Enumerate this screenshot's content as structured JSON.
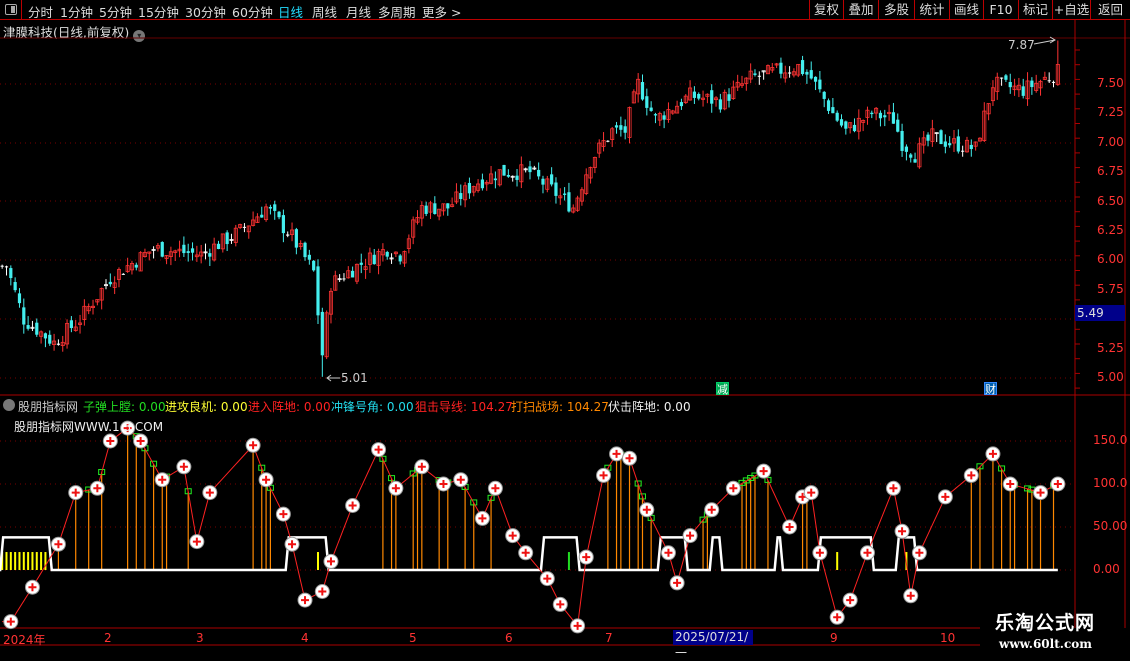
{
  "toolbar": {
    "periods": [
      "分时",
      "1分钟",
      "5分钟",
      "15分钟",
      "30分钟",
      "60分钟",
      "日线",
      "周线",
      "月线",
      "多周期",
      "更多 >"
    ],
    "active_period": "日线",
    "buttons": [
      "复权",
      "叠加",
      "多股",
      "统计",
      "画线",
      "F10",
      "标记",
      "+自选",
      "返回"
    ]
  },
  "stock": {
    "title": "津膜科技(日线,前复权)",
    "current_price": "5.49",
    "high_label": "7.87",
    "low_label": "5.01",
    "marker_reduce": "减",
    "marker_finance": "财"
  },
  "price_axis": [
    "7.50",
    "7.25",
    "7.00",
    "6.75",
    "6.50",
    "6.25",
    "6.00",
    "5.75",
    "5.25",
    "5.00"
  ],
  "indicator": {
    "name": "股朋指标网",
    "watermark": "股朋指标网WWW.1  3.COM",
    "items": [
      {
        "label": "子弹上膛: 0.00",
        "color": "#22dd22"
      },
      {
        "label": "进攻良机: 0.00",
        "color": "#ffff33"
      },
      {
        "label": "进入阵地: 0.00",
        "color": "#ff2222"
      },
      {
        "label": "冲锋号角: 0.00",
        "color": "#22ddee"
      },
      {
        "label": "狙击导线: 104.27",
        "color": "#ff2222"
      },
      {
        "label": "打扫战场: 104.27",
        "color": "#ff8800"
      },
      {
        "label": "伏击阵地: 0.00",
        "color": "#eeeeee"
      }
    ],
    "axis": [
      "150.0",
      "100.0",
      "50.00",
      "0.00"
    ]
  },
  "time_axis": {
    "months": [
      "2024年",
      "2",
      "3",
      "4",
      "5",
      "6",
      "7",
      "9",
      "10"
    ],
    "cursor_date": "2025/07/21/一"
  },
  "logo": {
    "line1": "乐淘公式网",
    "line2": "www.60lt.com"
  },
  "colors": {
    "up": "#ff3333",
    "down": "#44eeee",
    "grid": "#aa0000",
    "step": "#ffffff",
    "signal": "#ff8800",
    "bar": "#ffff00"
  },
  "chart_data": {
    "type": "candlestick",
    "bars": 245,
    "price_range": [
      4.9,
      7.95
    ],
    "close_keypoints": [
      [
        1,
        5.95
      ],
      [
        5,
        5.5
      ],
      [
        12,
        5.3
      ],
      [
        18,
        5.5
      ],
      [
        25,
        5.85
      ],
      [
        35,
        6.1
      ],
      [
        46,
        6.05
      ],
      [
        55,
        6.25
      ],
      [
        61,
        6.45
      ],
      [
        67,
        6.2
      ],
      [
        72,
        5.9
      ],
      [
        74,
        5.2
      ],
      [
        76,
        5.8
      ],
      [
        82,
        5.95
      ],
      [
        89,
        6.1
      ],
      [
        92,
        6.05
      ],
      [
        97,
        6.45
      ],
      [
        103,
        6.45
      ],
      [
        109,
        6.65
      ],
      [
        115,
        6.75
      ],
      [
        122,
        6.75
      ],
      [
        132,
        6.45
      ],
      [
        136,
        6.85
      ],
      [
        141,
        7.1
      ],
      [
        144,
        7.1
      ],
      [
        147,
        7.5
      ],
      [
        151,
        7.2
      ],
      [
        159,
        7.4
      ],
      [
        166,
        7.35
      ],
      [
        173,
        7.55
      ],
      [
        178,
        7.6
      ],
      [
        184,
        7.65
      ],
      [
        187,
        7.55
      ],
      [
        192,
        7.25
      ],
      [
        195,
        7.1
      ],
      [
        201,
        7.25
      ],
      [
        206,
        7.2
      ],
      [
        208,
        7.0
      ],
      [
        211,
        6.9
      ],
      [
        215,
        7.05
      ],
      [
        219,
        7.0
      ],
      [
        225,
        6.95
      ],
      [
        229,
        7.5
      ],
      [
        236,
        7.45
      ],
      [
        244,
        7.6
      ]
    ],
    "indicator_range": [
      -75,
      190
    ],
    "curve_keypoints": [
      [
        2,
        -60
      ],
      [
        7,
        -20
      ],
      [
        13,
        30
      ],
      [
        17,
        90
      ],
      [
        22,
        95
      ],
      [
        25,
        150
      ],
      [
        29,
        165
      ],
      [
        32,
        150
      ],
      [
        37,
        105
      ],
      [
        42,
        120
      ],
      [
        45,
        33
      ],
      [
        48,
        90
      ],
      [
        58,
        145
      ],
      [
        61,
        105
      ],
      [
        65,
        65
      ],
      [
        67,
        30
      ],
      [
        70,
        -35
      ],
      [
        74,
        -25
      ],
      [
        76,
        10
      ],
      [
        81,
        75
      ],
      [
        87,
        140
      ],
      [
        91,
        95
      ],
      [
        97,
        120
      ],
      [
        102,
        100
      ],
      [
        106,
        105
      ],
      [
        111,
        60
      ],
      [
        114,
        95
      ],
      [
        118,
        40
      ],
      [
        121,
        20
      ],
      [
        126,
        -10
      ],
      [
        129,
        -40
      ],
      [
        133,
        -65
      ],
      [
        135,
        15
      ],
      [
        139,
        110
      ],
      [
        142,
        135
      ],
      [
        145,
        130
      ],
      [
        149,
        70
      ],
      [
        154,
        20
      ],
      [
        156,
        -15
      ],
      [
        159,
        40
      ],
      [
        164,
        70
      ],
      [
        169,
        95
      ],
      [
        176,
        115
      ],
      [
        182,
        50
      ],
      [
        185,
        85
      ],
      [
        187,
        90
      ],
      [
        189,
        20
      ],
      [
        193,
        -55
      ],
      [
        196,
        -35
      ],
      [
        200,
        20
      ],
      [
        206,
        95
      ],
      [
        208,
        45
      ],
      [
        210,
        -30
      ],
      [
        212,
        20
      ],
      [
        218,
        85
      ],
      [
        224,
        110
      ],
      [
        229,
        135
      ],
      [
        233,
        100
      ],
      [
        240,
        90
      ],
      [
        244,
        100
      ]
    ],
    "signal_bars": [
      13,
      17,
      20,
      23,
      29,
      31,
      33,
      35,
      37,
      38,
      43,
      58,
      60,
      61,
      62,
      88,
      90,
      91,
      95,
      96,
      97,
      101,
      103,
      107,
      109,
      113,
      140,
      142,
      143,
      145,
      147,
      148,
      150,
      162,
      163,
      171,
      172,
      173,
      174,
      177,
      185,
      186,
      224,
      226,
      229,
      231,
      233,
      234,
      237,
      238,
      240,
      243
    ],
    "step_level": 38,
    "step_ranges": [
      [
        0,
        11
      ],
      [
        66,
        75
      ],
      [
        125,
        133
      ],
      [
        152,
        158
      ],
      [
        164,
        166
      ],
      [
        179,
        180
      ],
      [
        189,
        201
      ],
      [
        207,
        211
      ]
    ],
    "yellow_bars": [
      0,
      1,
      2,
      3,
      4,
      5,
      6,
      7,
      8,
      9,
      10,
      73,
      131,
      193,
      209
    ]
  }
}
